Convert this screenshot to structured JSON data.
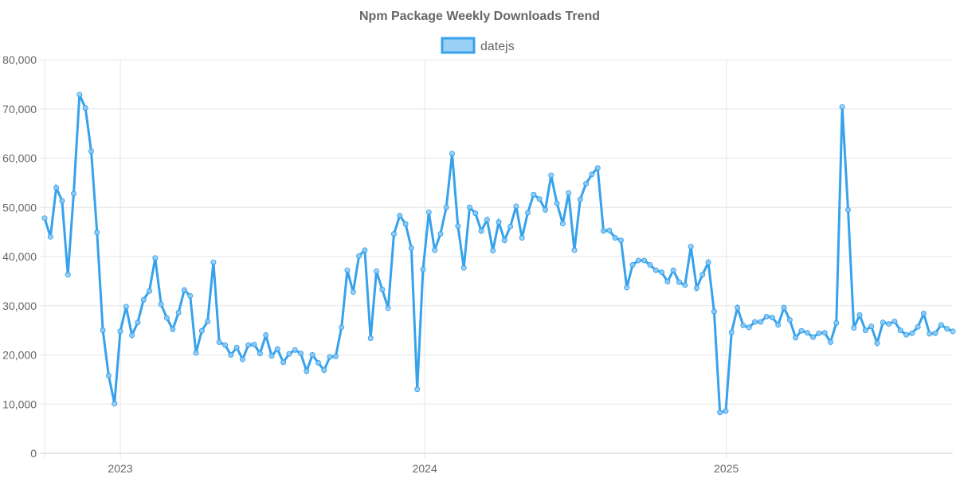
{
  "chart_data": {
    "type": "line",
    "title": "Npm Package Weekly Downloads Trend",
    "xlabel": "",
    "ylabel": "",
    "ylim": [
      0,
      80000
    ],
    "y_ticks": [
      "0",
      "10,000",
      "20,000",
      "30,000",
      "40,000",
      "50,000",
      "60,000",
      "70,000",
      "80,000"
    ],
    "y_tick_values": [
      0,
      10000,
      20000,
      30000,
      40000,
      50000,
      60000,
      70000,
      80000
    ],
    "x_ticks": [
      {
        "label": "2023",
        "week_index": 13
      },
      {
        "label": "2024",
        "week_index": 65.3
      },
      {
        "label": "2025",
        "week_index": 117.1
      }
    ],
    "grid": true,
    "legend_position": "top",
    "colors": {
      "line": "#36a2eb",
      "fill": "#9ad0f5",
      "grid": "#e5e5e5",
      "text": "#666666"
    },
    "series": [
      {
        "name": "datejs",
        "values": [
          47800,
          44000,
          54000,
          51300,
          36300,
          52800,
          72900,
          70200,
          61400,
          44900,
          25000,
          15800,
          10100,
          24800,
          29800,
          24000,
          26600,
          31200,
          33000,
          39700,
          30300,
          27500,
          25200,
          28600,
          33200,
          32000,
          20400,
          24900,
          26800,
          38800,
          22600,
          22000,
          20000,
          21500,
          19100,
          22000,
          22100,
          20300,
          24000,
          19800,
          21200,
          18500,
          20200,
          21000,
          20300,
          16700,
          20000,
          18400,
          16900,
          19600,
          19700,
          25600,
          37200,
          32800,
          40100,
          41300,
          23400,
          37000,
          33300,
          29500,
          44600,
          48300,
          46600,
          41700,
          13000,
          37400,
          49000,
          41300,
          44600,
          50000,
          60900,
          46200,
          37700,
          50000,
          48800,
          45200,
          47500,
          41200,
          47000,
          43300,
          46100,
          50200,
          43800,
          48900,
          52600,
          51700,
          49500,
          56500,
          50800,
          46700,
          52900,
          41300,
          51600,
          54800,
          56700,
          58000,
          45200,
          45300,
          43800,
          43300,
          33700,
          38300,
          39200,
          39200,
          38300,
          37200,
          36800,
          34900,
          37200,
          34800,
          34200,
          42000,
          33600,
          36300,
          38800,
          28800,
          8300,
          8600,
          24600,
          29600,
          26000,
          25600,
          26700,
          26700,
          27800,
          27600,
          26100,
          29600,
          27100,
          23500,
          24900,
          24500,
          23600,
          24400,
          24500,
          22600,
          26500,
          70400,
          49500,
          25500,
          28100,
          25000,
          25800,
          22400,
          26600,
          26300,
          26800,
          25000,
          24100,
          24400,
          25700,
          28400,
          24300,
          24400,
          26100,
          25300,
          24800
        ]
      }
    ]
  }
}
